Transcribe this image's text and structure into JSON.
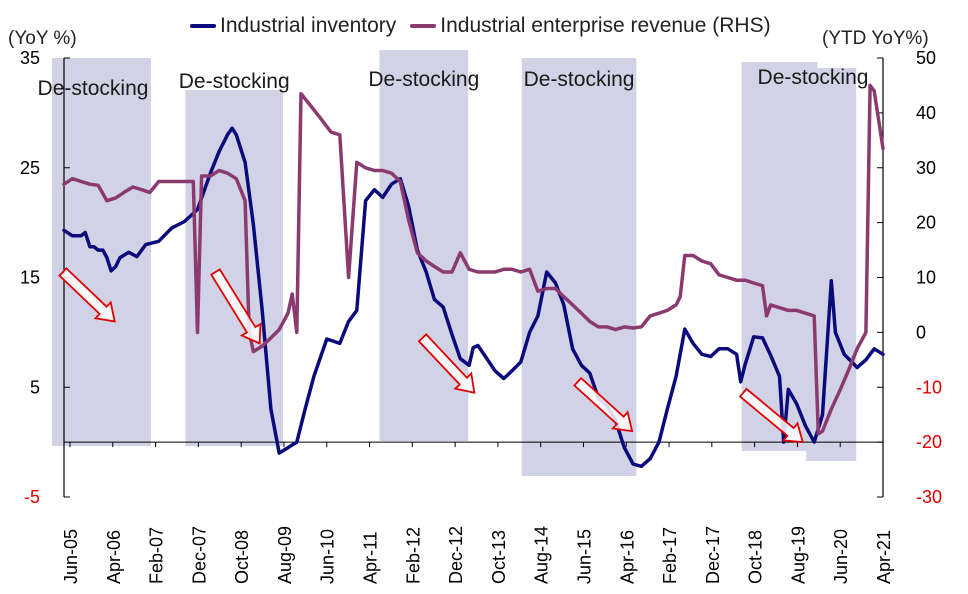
{
  "chart_data": {
    "type": "line",
    "left_axis_unit": "(YoY %)",
    "right_axis_unit": "(YTD YoY%)",
    "left_axis": {
      "ylim": [
        -5,
        35
      ],
      "ticks": [
        -5,
        5,
        15,
        25,
        35
      ],
      "tick_colors": [
        "#e00000",
        "#000000",
        "#000000",
        "#000000",
        "#000000"
      ]
    },
    "right_axis": {
      "ylim": [
        -30,
        50
      ],
      "ticks": [
        -30,
        -20,
        -10,
        0,
        10,
        20,
        30,
        40,
        50
      ],
      "negative_color": "#e00000",
      "positive_color": "#000000"
    },
    "x_tick_labels": [
      "Jun-05",
      "Apr-06",
      "Feb-07",
      "Dec-07",
      "Oct-08",
      "Aug-09",
      "Jun-10",
      "Apr-11",
      "Feb-12",
      "Dec-12",
      "Oct-13",
      "Aug-14",
      "Jun-15",
      "Apr-16",
      "Feb-17",
      "Dec-17",
      "Oct-18",
      "Aug-19",
      "Jun-20",
      "Apr-21"
    ],
    "shaded_periods": [
      {
        "label": "De-stocking",
        "start": 2005.42,
        "end": 2006.25
      },
      {
        "label": "De-stocking",
        "start": 2008.0,
        "end": 2009.42
      },
      {
        "label": "De-stocking",
        "start": 2011.75,
        "end": 2013.0
      },
      {
        "label": "De-stocking",
        "start": 2014.5,
        "end": 2016.25
      },
      {
        "label": "De-stocking",
        "start": 2018.75,
        "end": 2019.75
      },
      {
        "label": "De-stocking",
        "start": 2020.0,
        "end": 2020.5
      }
    ],
    "series": [
      {
        "name": "Industrial inventory",
        "axis": "left",
        "color": "#0a0a7c",
        "points": [
          [
            2005.42,
            19.3
          ],
          [
            2005.58,
            18.8
          ],
          [
            2005.75,
            18.8
          ],
          [
            2005.83,
            19.1
          ],
          [
            2005.92,
            17.8
          ],
          [
            2006.0,
            17.8
          ],
          [
            2006.08,
            17.5
          ],
          [
            2006.17,
            17.5
          ],
          [
            2006.25,
            16.8
          ],
          [
            2006.33,
            15.6
          ],
          [
            2006.42,
            16.0
          ],
          [
            2006.5,
            16.8
          ],
          [
            2006.67,
            17.3
          ],
          [
            2006.83,
            16.9
          ],
          [
            2007.0,
            18.0
          ],
          [
            2007.25,
            18.3
          ],
          [
            2007.5,
            19.5
          ],
          [
            2007.75,
            20.1
          ],
          [
            2008.0,
            21.2
          ],
          [
            2008.25,
            24.5
          ],
          [
            2008.42,
            26.5
          ],
          [
            2008.58,
            28.0
          ],
          [
            2008.67,
            28.6
          ],
          [
            2008.75,
            28.0
          ],
          [
            2008.92,
            25.5
          ],
          [
            2009.08,
            19.8
          ],
          [
            2009.25,
            12.0
          ],
          [
            2009.42,
            3.0
          ],
          [
            2009.58,
            -1.0
          ],
          [
            2009.75,
            -0.5
          ],
          [
            2009.92,
            0.0
          ],
          [
            2010.08,
            3.0
          ],
          [
            2010.25,
            6.0
          ],
          [
            2010.5,
            9.4
          ],
          [
            2010.75,
            9.0
          ],
          [
            2010.92,
            11.0
          ],
          [
            2011.08,
            12.0
          ],
          [
            2011.25,
            22.0
          ],
          [
            2011.42,
            23.0
          ],
          [
            2011.58,
            22.3
          ],
          [
            2011.75,
            23.5
          ],
          [
            2011.92,
            24.0
          ],
          [
            2012.08,
            21.5
          ],
          [
            2012.25,
            17.5
          ],
          [
            2012.42,
            15.5
          ],
          [
            2012.58,
            13.0
          ],
          [
            2012.75,
            12.3
          ],
          [
            2012.92,
            9.8
          ],
          [
            2013.08,
            7.6
          ],
          [
            2013.25,
            7.0
          ],
          [
            2013.33,
            8.6
          ],
          [
            2013.42,
            8.8
          ],
          [
            2013.58,
            7.7
          ],
          [
            2013.75,
            6.5
          ],
          [
            2013.92,
            5.8
          ],
          [
            2014.08,
            6.5
          ],
          [
            2014.25,
            7.3
          ],
          [
            2014.42,
            10.0
          ],
          [
            2014.58,
            11.5
          ],
          [
            2014.75,
            15.5
          ],
          [
            2014.92,
            14.5
          ],
          [
            2015.08,
            12.5
          ],
          [
            2015.25,
            8.5
          ],
          [
            2015.42,
            7.0
          ],
          [
            2015.58,
            6.3
          ],
          [
            2015.75,
            4.0
          ],
          [
            2015.92,
            3.3
          ],
          [
            2016.08,
            2.0
          ],
          [
            2016.25,
            -0.5
          ],
          [
            2016.42,
            -2.0
          ],
          [
            2016.58,
            -2.2
          ],
          [
            2016.75,
            -1.5
          ],
          [
            2016.92,
            0.0
          ],
          [
            2017.08,
            3.0
          ],
          [
            2017.25,
            6.0
          ],
          [
            2017.42,
            10.3
          ],
          [
            2017.58,
            9.0
          ],
          [
            2017.75,
            8.0
          ],
          [
            2017.92,
            7.8
          ],
          [
            2018.08,
            8.5
          ],
          [
            2018.25,
            8.5
          ],
          [
            2018.42,
            8.0
          ],
          [
            2018.5,
            5.5
          ],
          [
            2018.58,
            7.0
          ],
          [
            2018.75,
            9.6
          ],
          [
            2018.92,
            9.5
          ],
          [
            2019.08,
            7.9
          ],
          [
            2019.25,
            6.0
          ],
          [
            2019.33,
            0.0
          ],
          [
            2019.42,
            4.8
          ],
          [
            2019.58,
            3.5
          ],
          [
            2019.75,
            1.5
          ],
          [
            2019.92,
            0.0
          ],
          [
            2020.08,
            2.5
          ],
          [
            2020.25,
            14.7
          ],
          [
            2020.33,
            10.0
          ],
          [
            2020.5,
            8.0
          ],
          [
            2020.67,
            7.2
          ],
          [
            2020.75,
            6.8
          ],
          [
            2020.92,
            7.5
          ],
          [
            2021.08,
            8.5
          ],
          [
            2021.25,
            8.0
          ]
        ]
      },
      {
        "name": "Industrial enterprise revenue (RHS)",
        "axis": "right",
        "color": "#8b3a70",
        "points": [
          [
            2005.42,
            27.0
          ],
          [
            2005.58,
            28.0
          ],
          [
            2005.75,
            27.5
          ],
          [
            2005.92,
            27.0
          ],
          [
            2006.08,
            26.8
          ],
          [
            2006.25,
            24.0
          ],
          [
            2006.42,
            24.5
          ],
          [
            2006.58,
            25.5
          ],
          [
            2006.75,
            26.5
          ],
          [
            2006.92,
            26.0
          ],
          [
            2007.08,
            25.5
          ],
          [
            2007.25,
            27.5
          ],
          [
            2007.5,
            27.5
          ],
          [
            2007.75,
            27.5
          ],
          [
            2007.92,
            27.5
          ],
          [
            2008.0,
            0.0
          ],
          [
            2008.08,
            28.5
          ],
          [
            2008.25,
            28.5
          ],
          [
            2008.42,
            29.5
          ],
          [
            2008.58,
            29.0
          ],
          [
            2008.75,
            28.0
          ],
          [
            2008.92,
            24.0
          ],
          [
            2009.0,
            0.0
          ],
          [
            2009.08,
            -3.5
          ],
          [
            2009.25,
            -2.5
          ],
          [
            2009.42,
            -1.0
          ],
          [
            2009.58,
            0.5
          ],
          [
            2009.75,
            3.5
          ],
          [
            2009.83,
            7.0
          ],
          [
            2009.92,
            0.0
          ],
          [
            2010.0,
            43.5
          ],
          [
            2010.17,
            41.5
          ],
          [
            2010.42,
            38.5
          ],
          [
            2010.58,
            36.5
          ],
          [
            2010.75,
            36.0
          ],
          [
            2010.92,
            10.0
          ],
          [
            2011.08,
            31.0
          ],
          [
            2011.25,
            30.0
          ],
          [
            2011.42,
            29.5
          ],
          [
            2011.58,
            29.5
          ],
          [
            2011.75,
            29.0
          ],
          [
            2011.92,
            27.5
          ],
          [
            2012.08,
            20.5
          ],
          [
            2012.25,
            14.5
          ],
          [
            2012.42,
            13.0
          ],
          [
            2012.58,
            12.0
          ],
          [
            2012.75,
            11.0
          ],
          [
            2012.92,
            11.0
          ],
          [
            2013.08,
            14.5
          ],
          [
            2013.25,
            11.5
          ],
          [
            2013.42,
            11.0
          ],
          [
            2013.58,
            11.0
          ],
          [
            2013.75,
            11.0
          ],
          [
            2013.92,
            11.5
          ],
          [
            2014.08,
            11.5
          ],
          [
            2014.25,
            11.0
          ],
          [
            2014.42,
            11.5
          ],
          [
            2014.58,
            7.5
          ],
          [
            2014.75,
            8.0
          ],
          [
            2014.92,
            8.0
          ],
          [
            2015.08,
            6.5
          ],
          [
            2015.25,
            5.0
          ],
          [
            2015.42,
            3.5
          ],
          [
            2015.58,
            2.0
          ],
          [
            2015.75,
            1.0
          ],
          [
            2015.92,
            1.0
          ],
          [
            2016.08,
            0.5
          ],
          [
            2016.25,
            1.0
          ],
          [
            2016.42,
            0.8
          ],
          [
            2016.58,
            1.0
          ],
          [
            2016.75,
            3.0
          ],
          [
            2016.92,
            3.5
          ],
          [
            2017.08,
            4.0
          ],
          [
            2017.25,
            5.0
          ],
          [
            2017.33,
            6.5
          ],
          [
            2017.42,
            14.0
          ],
          [
            2017.58,
            14.0
          ],
          [
            2017.75,
            13.0
          ],
          [
            2017.92,
            12.5
          ],
          [
            2018.08,
            10.5
          ],
          [
            2018.25,
            10.0
          ],
          [
            2018.42,
            9.5
          ],
          [
            2018.58,
            9.5
          ],
          [
            2018.75,
            9.0
          ],
          [
            2018.92,
            8.5
          ],
          [
            2019.0,
            3.0
          ],
          [
            2019.08,
            5.0
          ],
          [
            2019.25,
            4.5
          ],
          [
            2019.42,
            4.0
          ],
          [
            2019.58,
            4.0
          ],
          [
            2019.75,
            3.5
          ],
          [
            2019.92,
            3.0
          ],
          [
            2020.0,
            -18.5
          ],
          [
            2020.08,
            -18.0
          ],
          [
            2020.25,
            -14.0
          ],
          [
            2020.42,
            -10.5
          ],
          [
            2020.58,
            -7.0
          ],
          [
            2020.75,
            -3.0
          ],
          [
            2020.92,
            0.0
          ],
          [
            2021.0,
            45.0
          ],
          [
            2021.08,
            44.0
          ],
          [
            2021.25,
            33.5
          ]
        ]
      }
    ],
    "annotations": [
      {
        "type": "arrow",
        "label": "",
        "color": "#e00000",
        "from": [
          2005.4,
          15.5
        ],
        "to": [
          2006.4,
          11.0
        ]
      },
      {
        "type": "arrow",
        "label": "",
        "color": "#e00000",
        "from": [
          2008.35,
          15.5
        ],
        "to": [
          2009.2,
          9.0
        ]
      },
      {
        "type": "arrow",
        "label": "",
        "color": "#e00000",
        "from": [
          2012.35,
          9.5
        ],
        "to": [
          2013.35,
          4.5
        ]
      },
      {
        "type": "arrow",
        "label": "",
        "color": "#e00000",
        "from": [
          2015.35,
          5.5
        ],
        "to": [
          2016.4,
          1.0
        ]
      },
      {
        "type": "arrow",
        "label": "",
        "color": "#e00000",
        "from": [
          2018.55,
          4.5
        ],
        "to": [
          2019.7,
          0.0
        ]
      }
    ]
  }
}
